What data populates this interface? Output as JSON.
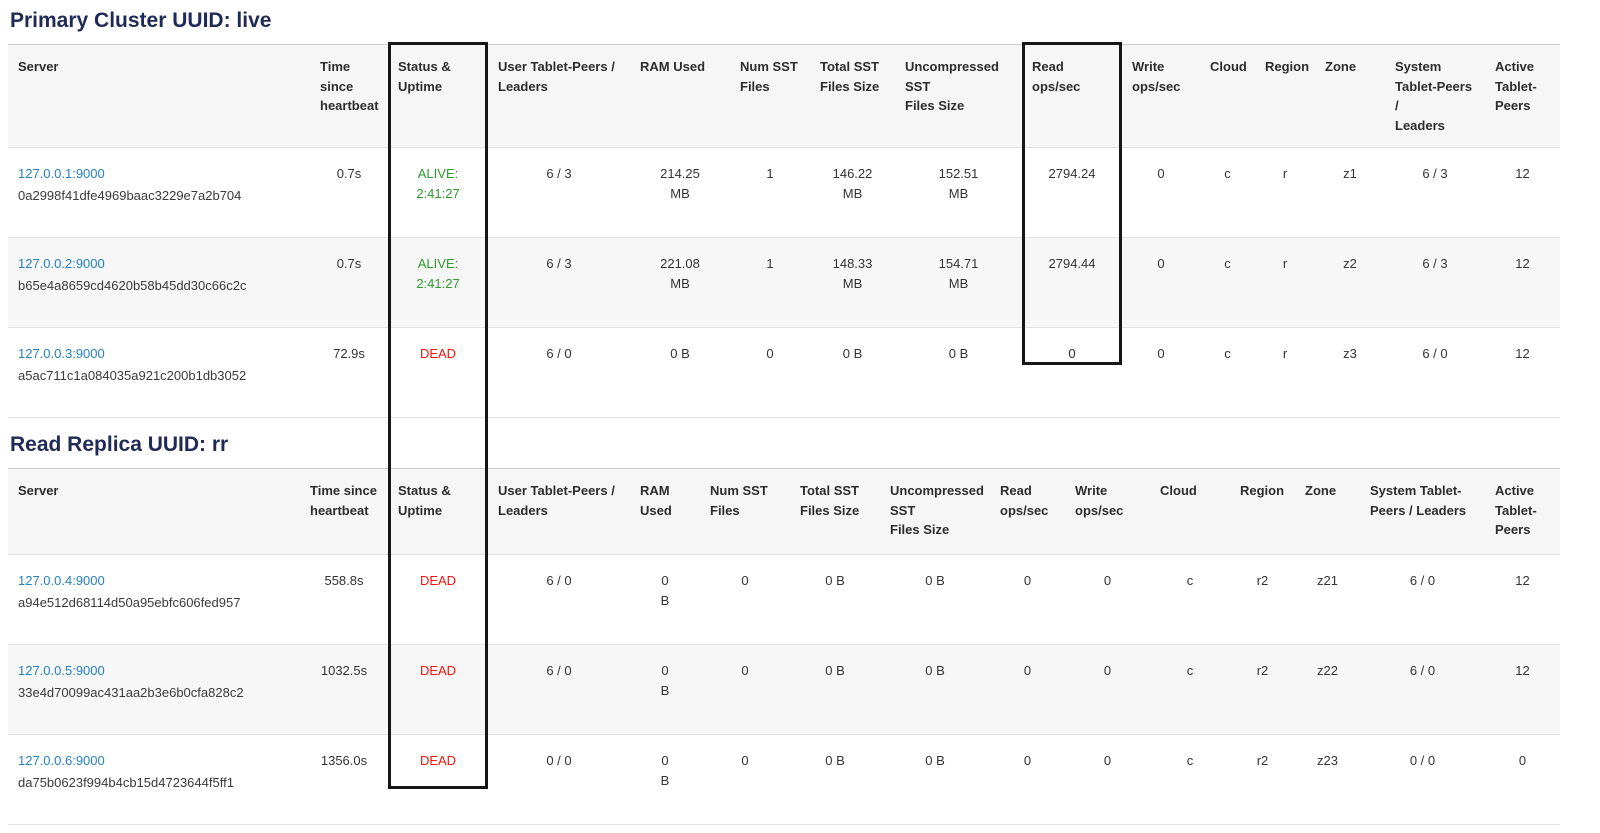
{
  "colors": {
    "title": "#1f2a56",
    "link": "#2580c3",
    "alive": "#2d9b2d",
    "dead": "#f3150c"
  },
  "annotations": [
    {
      "label": "status-uptime-column-highlight"
    },
    {
      "label": "read-ops-column-highlight"
    }
  ],
  "sections": [
    {
      "title": "Primary Cluster UUID: live",
      "columns": [
        "Server",
        "Time\nsince\nheartbeat",
        "Status &\nUptime",
        "User Tablet-Peers /\nLeaders",
        "RAM Used",
        "Num SST\nFiles",
        "Total SST\nFiles Size",
        "Uncompressed\nSST\nFiles Size",
        "Read\nops/sec",
        "Write\nops/sec",
        "Cloud",
        "Region",
        "Zone",
        "System\nTablet-Peers /\nLeaders",
        "Active\nTablet-\nPeers"
      ],
      "rows": [
        {
          "server_link": "127.0.0.1:9000",
          "server_uuid": "0a2998f41dfe4969baac3229e7a2b704",
          "time_since_heartbeat": "0.7s",
          "status": "ALIVE:\n2:41:27",
          "status_state": "alive",
          "user_tablet_peers_leaders": "6 / 3",
          "ram_used": "214.25\nMB",
          "num_sst_files": "1",
          "total_sst_files_size": "146.22\nMB",
          "uncompressed_sst_files_size": "152.51\nMB",
          "read_ops_sec": "2794.24",
          "write_ops_sec": "0",
          "cloud": "c",
          "region": "r",
          "zone": "z1",
          "system_tablet_peers_leaders": "6 / 3",
          "active_tablet_peers": "12"
        },
        {
          "server_link": "127.0.0.2:9000",
          "server_uuid": "b65e4a8659cd4620b58b45dd30c66c2c",
          "time_since_heartbeat": "0.7s",
          "status": "ALIVE:\n2:41:27",
          "status_state": "alive",
          "user_tablet_peers_leaders": "6 / 3",
          "ram_used": "221.08\nMB",
          "num_sst_files": "1",
          "total_sst_files_size": "148.33\nMB",
          "uncompressed_sst_files_size": "154.71\nMB",
          "read_ops_sec": "2794.44",
          "write_ops_sec": "0",
          "cloud": "c",
          "region": "r",
          "zone": "z2",
          "system_tablet_peers_leaders": "6 / 3",
          "active_tablet_peers": "12"
        },
        {
          "server_link": "127.0.0.3:9000",
          "server_uuid": "a5ac711c1a084035a921c200b1db3052",
          "time_since_heartbeat": "72.9s",
          "status": "DEAD",
          "status_state": "dead",
          "user_tablet_peers_leaders": "6 / 0",
          "ram_used": "0 B",
          "num_sst_files": "0",
          "total_sst_files_size": "0 B",
          "uncompressed_sst_files_size": "0 B",
          "read_ops_sec": "0",
          "write_ops_sec": "0",
          "cloud": "c",
          "region": "r",
          "zone": "z3",
          "system_tablet_peers_leaders": "6 / 0",
          "active_tablet_peers": "12"
        }
      ]
    },
    {
      "title": "Read Replica UUID: rr",
      "columns": [
        "Server",
        "Time since\nheartbeat",
        "Status &\nUptime",
        "User Tablet-Peers /\nLeaders",
        "RAM\nUsed",
        "Num SST\nFiles",
        "Total SST\nFiles Size",
        "Uncompressed\nSST\nFiles Size",
        "Read\nops/sec",
        "Write\nops/sec",
        "Cloud",
        "Region",
        "Zone",
        "System Tablet-\nPeers / Leaders",
        "Active\nTablet-\nPeers"
      ],
      "rows": [
        {
          "server_link": "127.0.0.4:9000",
          "server_uuid": "a94e512d68114d50a95ebfc606fed957",
          "time_since_heartbeat": "558.8s",
          "status": "DEAD",
          "status_state": "dead",
          "user_tablet_peers_leaders": "6 / 0",
          "ram_used": "0\nB",
          "num_sst_files": "0",
          "total_sst_files_size": "0 B",
          "uncompressed_sst_files_size": "0 B",
          "read_ops_sec": "0",
          "write_ops_sec": "0",
          "cloud": "c",
          "region": "r2",
          "zone": "z21",
          "system_tablet_peers_leaders": "6 / 0",
          "active_tablet_peers": "12"
        },
        {
          "server_link": "127.0.0.5:9000",
          "server_uuid": "33e4d70099ac431aa2b3e6b0cfa828c2",
          "time_since_heartbeat": "1032.5s",
          "status": "DEAD",
          "status_state": "dead",
          "user_tablet_peers_leaders": "6 / 0",
          "ram_used": "0\nB",
          "num_sst_files": "0",
          "total_sst_files_size": "0 B",
          "uncompressed_sst_files_size": "0 B",
          "read_ops_sec": "0",
          "write_ops_sec": "0",
          "cloud": "c",
          "region": "r2",
          "zone": "z22",
          "system_tablet_peers_leaders": "6 / 0",
          "active_tablet_peers": "12"
        },
        {
          "server_link": "127.0.0.6:9000",
          "server_uuid": "da75b0623f994b4cb15d4723644f5ff1",
          "time_since_heartbeat": "1356.0s",
          "status": "DEAD",
          "status_state": "dead",
          "user_tablet_peers_leaders": "0 / 0",
          "ram_used": "0\nB",
          "num_sst_files": "0",
          "total_sst_files_size": "0 B",
          "uncompressed_sst_files_size": "0 B",
          "read_ops_sec": "0",
          "write_ops_sec": "0",
          "cloud": "c",
          "region": "r2",
          "zone": "z23",
          "system_tablet_peers_leaders": "0 / 0",
          "active_tablet_peers": "0"
        }
      ]
    }
  ]
}
